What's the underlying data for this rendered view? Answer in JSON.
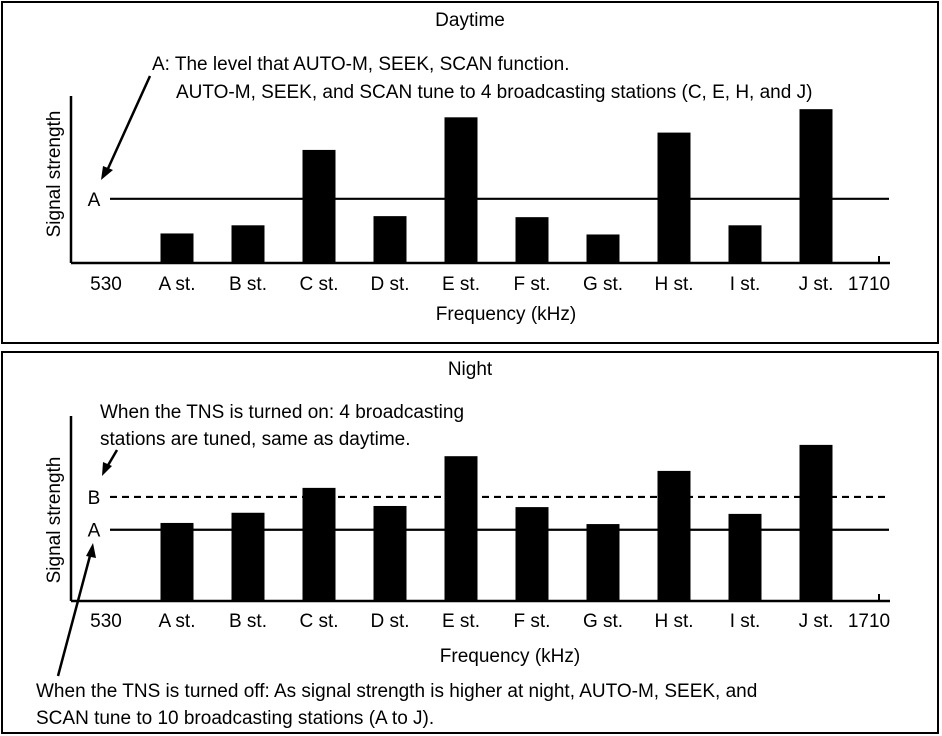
{
  "chart_data": [
    {
      "type": "bar",
      "title": "Daytime",
      "xlabel": "Frequency (kHz)",
      "ylabel": "Signal strength",
      "x_ticks": [
        "530",
        "A st.",
        "B st.",
        "C st.",
        "D st.",
        "E st.",
        "F st.",
        "G st.",
        "H st.",
        "I st.",
        "J st.",
        "1710"
      ],
      "categories": [
        "A st.",
        "B st.",
        "C st.",
        "D st.",
        "E st.",
        "F st.",
        "G st.",
        "H st.",
        "I st.",
        "J st."
      ],
      "values": [
        2.9,
        3.7,
        11.1,
        4.6,
        14.3,
        4.5,
        2.8,
        12.8,
        3.7,
        15.1
      ],
      "ylim": [
        0,
        16
      ],
      "levels": [
        {
          "label": "A",
          "value": 6.3,
          "style": "solid"
        }
      ],
      "annotations": [
        "A: The level that AUTO-M, SEEK, SCAN function.",
        "AUTO-M, SEEK, and SCAN tune to 4 broadcasting stations (C, E, H, and J)"
      ]
    },
    {
      "type": "bar",
      "title": "Night",
      "xlabel": "Frequency (kHz)",
      "ylabel": "Signal strength",
      "x_ticks": [
        "530",
        "A st.",
        "B st.",
        "C st.",
        "D st.",
        "E st.",
        "F st.",
        "G st.",
        "H st.",
        "I st.",
        "J st.",
        "1710"
      ],
      "categories": [
        "A st.",
        "B st.",
        "C st.",
        "D st.",
        "E st.",
        "F st.",
        "G st.",
        "H st.",
        "I st.",
        "J st."
      ],
      "values": [
        6.9,
        7.8,
        10.0,
        8.4,
        12.8,
        8.3,
        6.8,
        11.5,
        7.7,
        13.8
      ],
      "ylim": [
        0,
        16
      ],
      "levels": [
        {
          "label": "B",
          "value": 9.2,
          "style": "dashed"
        },
        {
          "label": "A",
          "value": 6.3,
          "style": "solid"
        }
      ],
      "annotations": [
        "When the TNS is turned on: 4 broadcasting",
        "stations are tuned, same as daytime.",
        "When the TNS is turned off: As signal strength is higher at night, AUTO-M, SEEK, and",
        "SCAN tune to 10 broadcasting stations (A to J)."
      ]
    }
  ]
}
